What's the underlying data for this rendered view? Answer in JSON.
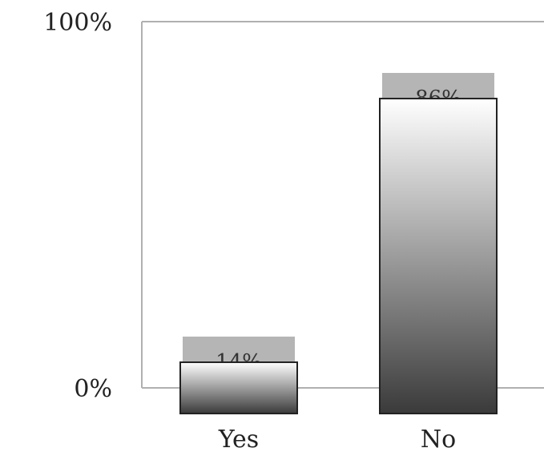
{
  "chart_data": {
    "type": "bar",
    "categories": [
      "Yes",
      "No"
    ],
    "values": [
      14,
      86
    ],
    "data_labels": [
      "14%",
      "86%"
    ],
    "y_tick_labels": [
      "0%",
      "100%"
    ],
    "ylim": [
      0,
      100
    ],
    "title": "",
    "xlabel": "",
    "ylabel": "",
    "grid": false,
    "legend": "none",
    "colors": {
      "bar_top": "#ffffff",
      "bar_bottom": "#3a3a3a",
      "bar_border": "#222222",
      "label_box": "#b5b5b5",
      "axis": "#b0b0b0"
    }
  }
}
